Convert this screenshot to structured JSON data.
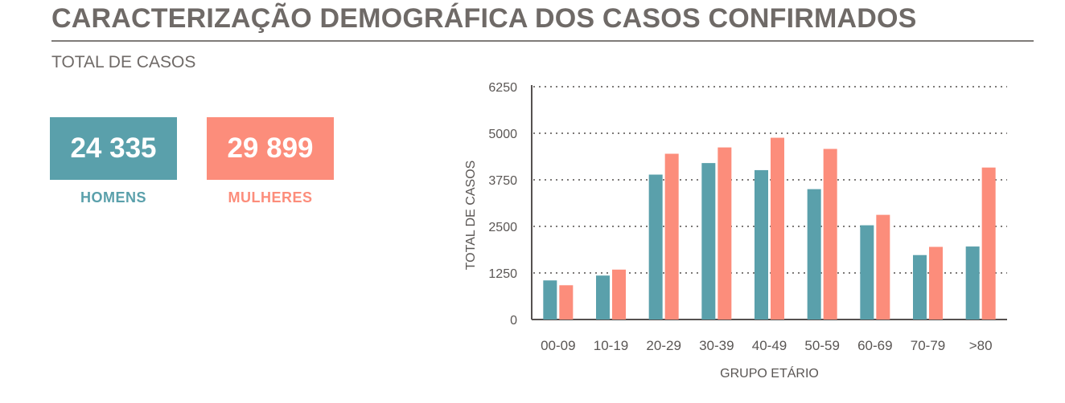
{
  "header": {
    "title": "CARACTERIZAÇÃO DEMOGRÁFICA DOS CASOS CONFIRMADOS",
    "subtitle": "TOTAL DE CASOS"
  },
  "totals": {
    "men": {
      "value": "24 335",
      "label": "HOMENS",
      "color": "#5aa0ab"
    },
    "women": {
      "value": "29 899",
      "label": "MULHERES",
      "color": "#fc8d7b"
    }
  },
  "chart_data": {
    "type": "bar",
    "title": "",
    "xlabel": "GRUPO ETÁRIO",
    "ylabel": "TOTAL DE CASOS",
    "ylim": [
      0,
      6250
    ],
    "yticks": [
      0,
      1250,
      2500,
      3750,
      5000,
      6250
    ],
    "grid": "horizontal-dotted",
    "categories": [
      "00-09",
      "10-19",
      "20-29",
      "30-39",
      "40-49",
      "50-59",
      "60-69",
      "70-79",
      ">80"
    ],
    "series": [
      {
        "color": "#5aa0ab",
        "values": [
          1050,
          1180,
          3890,
          4200,
          4010,
          3500,
          2530,
          1730,
          1960
        ]
      },
      {
        "color": "#fc8d7b",
        "values": [
          920,
          1340,
          4450,
          4620,
          4880,
          4580,
          2810,
          1950,
          4080
        ]
      }
    ]
  }
}
